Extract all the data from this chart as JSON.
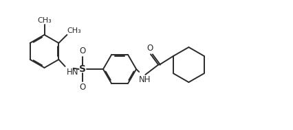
{
  "bg_color": "#ffffff",
  "line_color": "#2a2a2a",
  "line_width": 1.4,
  "dbo": 0.035,
  "font_size": 8,
  "figsize": [
    4.26,
    1.9
  ],
  "dpi": 100,
  "xlim": [
    0,
    10.5
  ],
  "ylim": [
    0,
    4.7
  ]
}
